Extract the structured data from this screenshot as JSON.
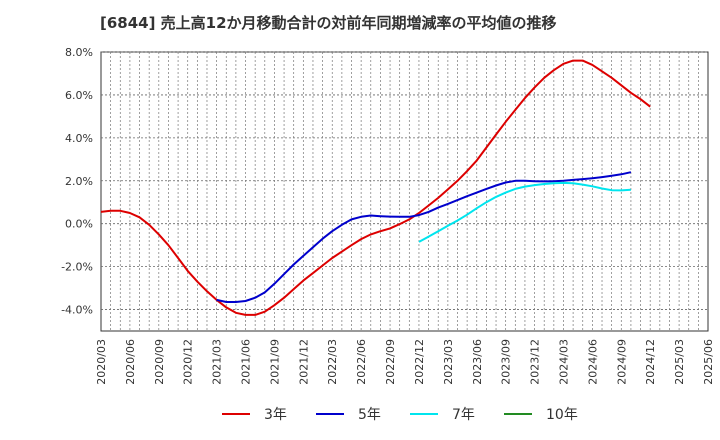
{
  "chart_data": {
    "type": "line",
    "title": "[6844]  売上高12か月移動合計の対前年同期増減率の平均値の推移",
    "xlabel": "",
    "ylabel": "",
    "ylim": [
      -5.0,
      8.0
    ],
    "yticks": [
      8.0,
      6.0,
      4.0,
      2.0,
      0.0,
      -2.0,
      -4.0
    ],
    "ytick_labels": [
      "8.0%",
      "6.0%",
      "4.0%",
      "2.0%",
      "0.0%",
      "-2.0%",
      "-4.0%"
    ],
    "x_categories": [
      "2020/03",
      "2020/06",
      "2020/09",
      "2020/12",
      "2021/03",
      "2021/06",
      "2021/09",
      "2021/12",
      "2022/03",
      "2022/06",
      "2022/09",
      "2022/12",
      "2023/03",
      "2023/06",
      "2023/09",
      "2023/12",
      "2024/03",
      "2024/06",
      "2024/09",
      "2024/12",
      "2025/03",
      "2025/06"
    ],
    "grid": true,
    "legend_position": "bottom",
    "series": [
      {
        "name": "3年",
        "color": "#dd0000",
        "points": [
          [
            "2020/03",
            0.55
          ],
          [
            "2020/04",
            0.6
          ],
          [
            "2020/05",
            0.6
          ],
          [
            "2020/06",
            0.5
          ],
          [
            "2020/07",
            0.3
          ],
          [
            "2020/08",
            -0.05
          ],
          [
            "2020/09",
            -0.5
          ],
          [
            "2020/10",
            -1.0
          ],
          [
            "2020/11",
            -1.6
          ],
          [
            "2020/12",
            -2.2
          ],
          [
            "2021/01",
            -2.7
          ],
          [
            "2021/02",
            -3.15
          ],
          [
            "2021/03",
            -3.55
          ],
          [
            "2021/04",
            -3.9
          ],
          [
            "2021/05",
            -4.15
          ],
          [
            "2021/06",
            -4.25
          ],
          [
            "2021/07",
            -4.25
          ],
          [
            "2021/08",
            -4.1
          ],
          [
            "2021/09",
            -3.8
          ],
          [
            "2021/10",
            -3.45
          ],
          [
            "2021/11",
            -3.05
          ],
          [
            "2021/12",
            -2.65
          ],
          [
            "2022/01",
            -2.3
          ],
          [
            "2022/02",
            -1.95
          ],
          [
            "2022/03",
            -1.6
          ],
          [
            "2022/04",
            -1.3
          ],
          [
            "2022/05",
            -1.0
          ],
          [
            "2022/06",
            -0.72
          ],
          [
            "2022/07",
            -0.5
          ],
          [
            "2022/08",
            -0.35
          ],
          [
            "2022/09",
            -0.22
          ],
          [
            "2022/10",
            -0.02
          ],
          [
            "2022/11",
            0.2
          ],
          [
            "2022/12",
            0.5
          ],
          [
            "2023/01",
            0.85
          ],
          [
            "2023/02",
            1.2
          ],
          [
            "2023/03",
            1.6
          ],
          [
            "2023/04",
            2.0
          ],
          [
            "2023/05",
            2.45
          ],
          [
            "2023/06",
            2.95
          ],
          [
            "2023/07",
            3.55
          ],
          [
            "2023/08",
            4.15
          ],
          [
            "2023/09",
            4.75
          ],
          [
            "2023/10",
            5.3
          ],
          [
            "2023/11",
            5.85
          ],
          [
            "2023/12",
            6.35
          ],
          [
            "2024/01",
            6.8
          ],
          [
            "2024/02",
            7.15
          ],
          [
            "2024/03",
            7.45
          ],
          [
            "2024/04",
            7.6
          ],
          [
            "2024/05",
            7.6
          ],
          [
            "2024/06",
            7.4
          ],
          [
            "2024/07",
            7.1
          ],
          [
            "2024/08",
            6.8
          ],
          [
            "2024/09",
            6.45
          ],
          [
            "2024/10",
            6.1
          ],
          [
            "2024/11",
            5.8
          ],
          [
            "2024/12",
            5.45
          ]
        ]
      },
      {
        "name": "5年",
        "color": "#0000cc",
        "points": [
          [
            "2021/03",
            -3.55
          ],
          [
            "2021/04",
            -3.65
          ],
          [
            "2021/05",
            -3.65
          ],
          [
            "2021/06",
            -3.6
          ],
          [
            "2021/07",
            -3.45
          ],
          [
            "2021/08",
            -3.2
          ],
          [
            "2021/09",
            -2.8
          ],
          [
            "2021/10",
            -2.35
          ],
          [
            "2021/11",
            -1.9
          ],
          [
            "2021/12",
            -1.5
          ],
          [
            "2022/01",
            -1.1
          ],
          [
            "2022/02",
            -0.7
          ],
          [
            "2022/03",
            -0.35
          ],
          [
            "2022/04",
            -0.05
          ],
          [
            "2022/05",
            0.2
          ],
          [
            "2022/06",
            0.32
          ],
          [
            "2022/07",
            0.38
          ],
          [
            "2022/08",
            0.35
          ],
          [
            "2022/09",
            0.33
          ],
          [
            "2022/10",
            0.32
          ],
          [
            "2022/11",
            0.32
          ],
          [
            "2022/12",
            0.4
          ],
          [
            "2023/01",
            0.55
          ],
          [
            "2023/02",
            0.75
          ],
          [
            "2023/03",
            0.92
          ],
          [
            "2023/04",
            1.1
          ],
          [
            "2023/05",
            1.28
          ],
          [
            "2023/06",
            1.45
          ],
          [
            "2023/07",
            1.62
          ],
          [
            "2023/08",
            1.78
          ],
          [
            "2023/09",
            1.92
          ],
          [
            "2023/10",
            2.0
          ],
          [
            "2023/11",
            2.0
          ],
          [
            "2023/12",
            1.98
          ],
          [
            "2024/01",
            1.97
          ],
          [
            "2024/02",
            1.98
          ],
          [
            "2024/03",
            2.0
          ],
          [
            "2024/04",
            2.04
          ],
          [
            "2024/05",
            2.08
          ],
          [
            "2024/06",
            2.12
          ],
          [
            "2024/07",
            2.17
          ],
          [
            "2024/08",
            2.23
          ],
          [
            "2024/09",
            2.3
          ],
          [
            "2024/10",
            2.4
          ]
        ]
      },
      {
        "name": "7年",
        "color": "#00e5ee",
        "points": [
          [
            "2022/12",
            -0.85
          ],
          [
            "2023/01",
            -0.6
          ],
          [
            "2023/02",
            -0.35
          ],
          [
            "2023/03",
            -0.1
          ],
          [
            "2023/04",
            0.15
          ],
          [
            "2023/05",
            0.42
          ],
          [
            "2023/06",
            0.72
          ],
          [
            "2023/07",
            1.0
          ],
          [
            "2023/08",
            1.25
          ],
          [
            "2023/09",
            1.45
          ],
          [
            "2023/10",
            1.62
          ],
          [
            "2023/11",
            1.73
          ],
          [
            "2023/12",
            1.8
          ],
          [
            "2024/01",
            1.85
          ],
          [
            "2024/02",
            1.88
          ],
          [
            "2024/03",
            1.9
          ],
          [
            "2024/04",
            1.88
          ],
          [
            "2024/05",
            1.82
          ],
          [
            "2024/06",
            1.74
          ],
          [
            "2024/07",
            1.64
          ],
          [
            "2024/08",
            1.56
          ],
          [
            "2024/09",
            1.55
          ],
          [
            "2024/10",
            1.58
          ]
        ]
      },
      {
        "name": "10年",
        "color": "#228b22",
        "points": []
      }
    ]
  }
}
